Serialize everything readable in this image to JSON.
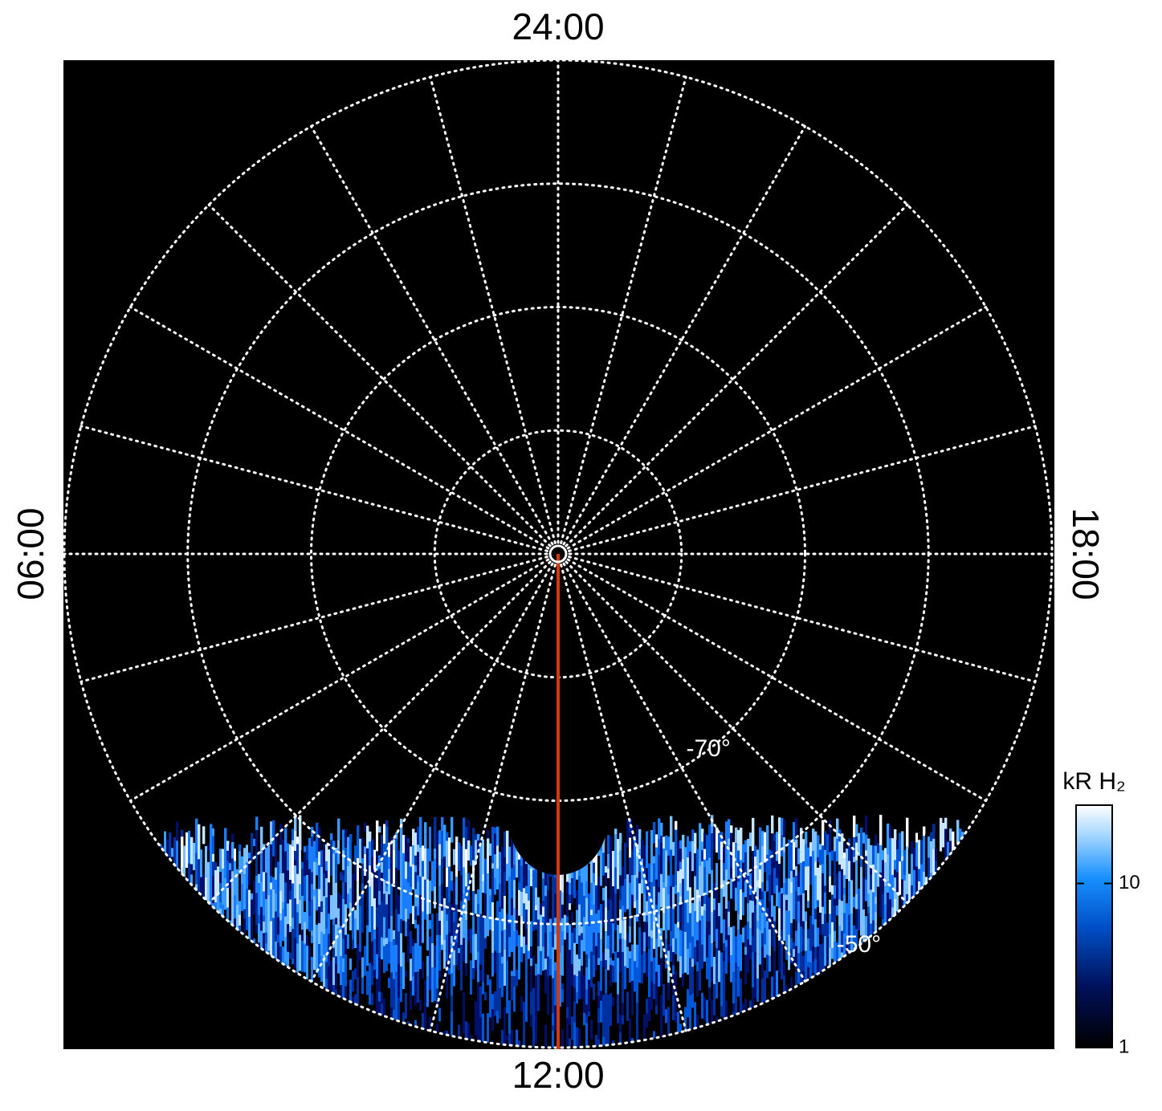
{
  "chart_data": {
    "type": "polar",
    "theta_ticks": [
      {
        "value": 0,
        "label": "24:00"
      },
      {
        "value": 6,
        "label": "06:00"
      },
      {
        "value": 12,
        "label": "12:00"
      },
      {
        "value": 18,
        "label": "18:00"
      }
    ],
    "rlim": [
      -90,
      -50
    ],
    "rticks": [
      {
        "value": -80,
        "label": null
      },
      {
        "value": -70,
        "label": "-70°"
      },
      {
        "value": -60,
        "label": null
      },
      {
        "value": -50,
        "label": "-50°"
      }
    ],
    "colorbar": {
      "title": "kR H₂",
      "log": true,
      "clim": [
        1,
        30
      ],
      "ticks": [
        1,
        10
      ]
    }
  }
}
